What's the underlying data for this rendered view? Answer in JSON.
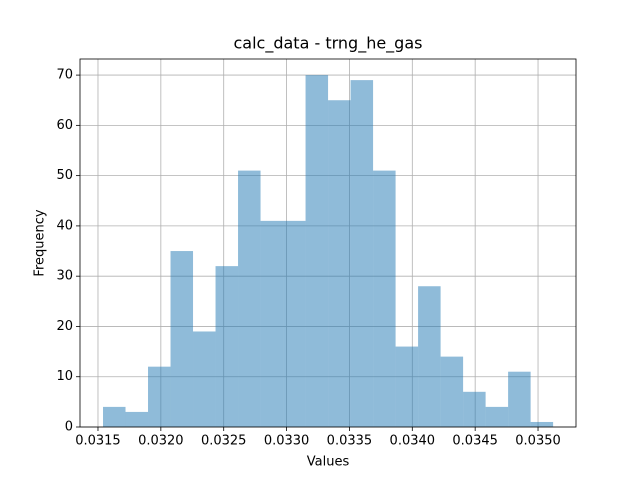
{
  "chart_data": {
    "type": "histogram",
    "title": "calc_data - trng_he_gas",
    "x_label": "Values",
    "y_label": "Frequency",
    "bins": [
      0.03154,
      0.031719,
      0.031898,
      0.032077,
      0.032256,
      0.032435,
      0.032614,
      0.032793,
      0.032972,
      0.033151,
      0.03333,
      0.033509,
      0.033688,
      0.033867,
      0.034046,
      0.034225,
      0.034404,
      0.034583,
      0.034762,
      0.034941,
      0.03512
    ],
    "counts": [
      4,
      3,
      12,
      35,
      19,
      32,
      51,
      41,
      41,
      70,
      65,
      69,
      51,
      16,
      28,
      14,
      7,
      4,
      11,
      1
    ],
    "color": "#1f77b4",
    "alpha": 0.5,
    "xlim": [
      0.031357,
      0.035302
    ],
    "xticks": [
      0.0315,
      {
        "value": 0.032,
        "label": "0.0320"
      },
      0.0325,
      {
        "value": 0.033,
        "label": "0.0330"
      },
      0.0335,
      {
        "value": 0.034,
        "label": "0.0340"
      },
      0.0345,
      {
        "value": 0.035,
        "label": "0.0350"
      }
    ],
    "ylim": [
      0,
      73.2
    ],
    "yticks": [
      0,
      10,
      20,
      30,
      40,
      50,
      60,
      70
    ],
    "grid": true
  }
}
